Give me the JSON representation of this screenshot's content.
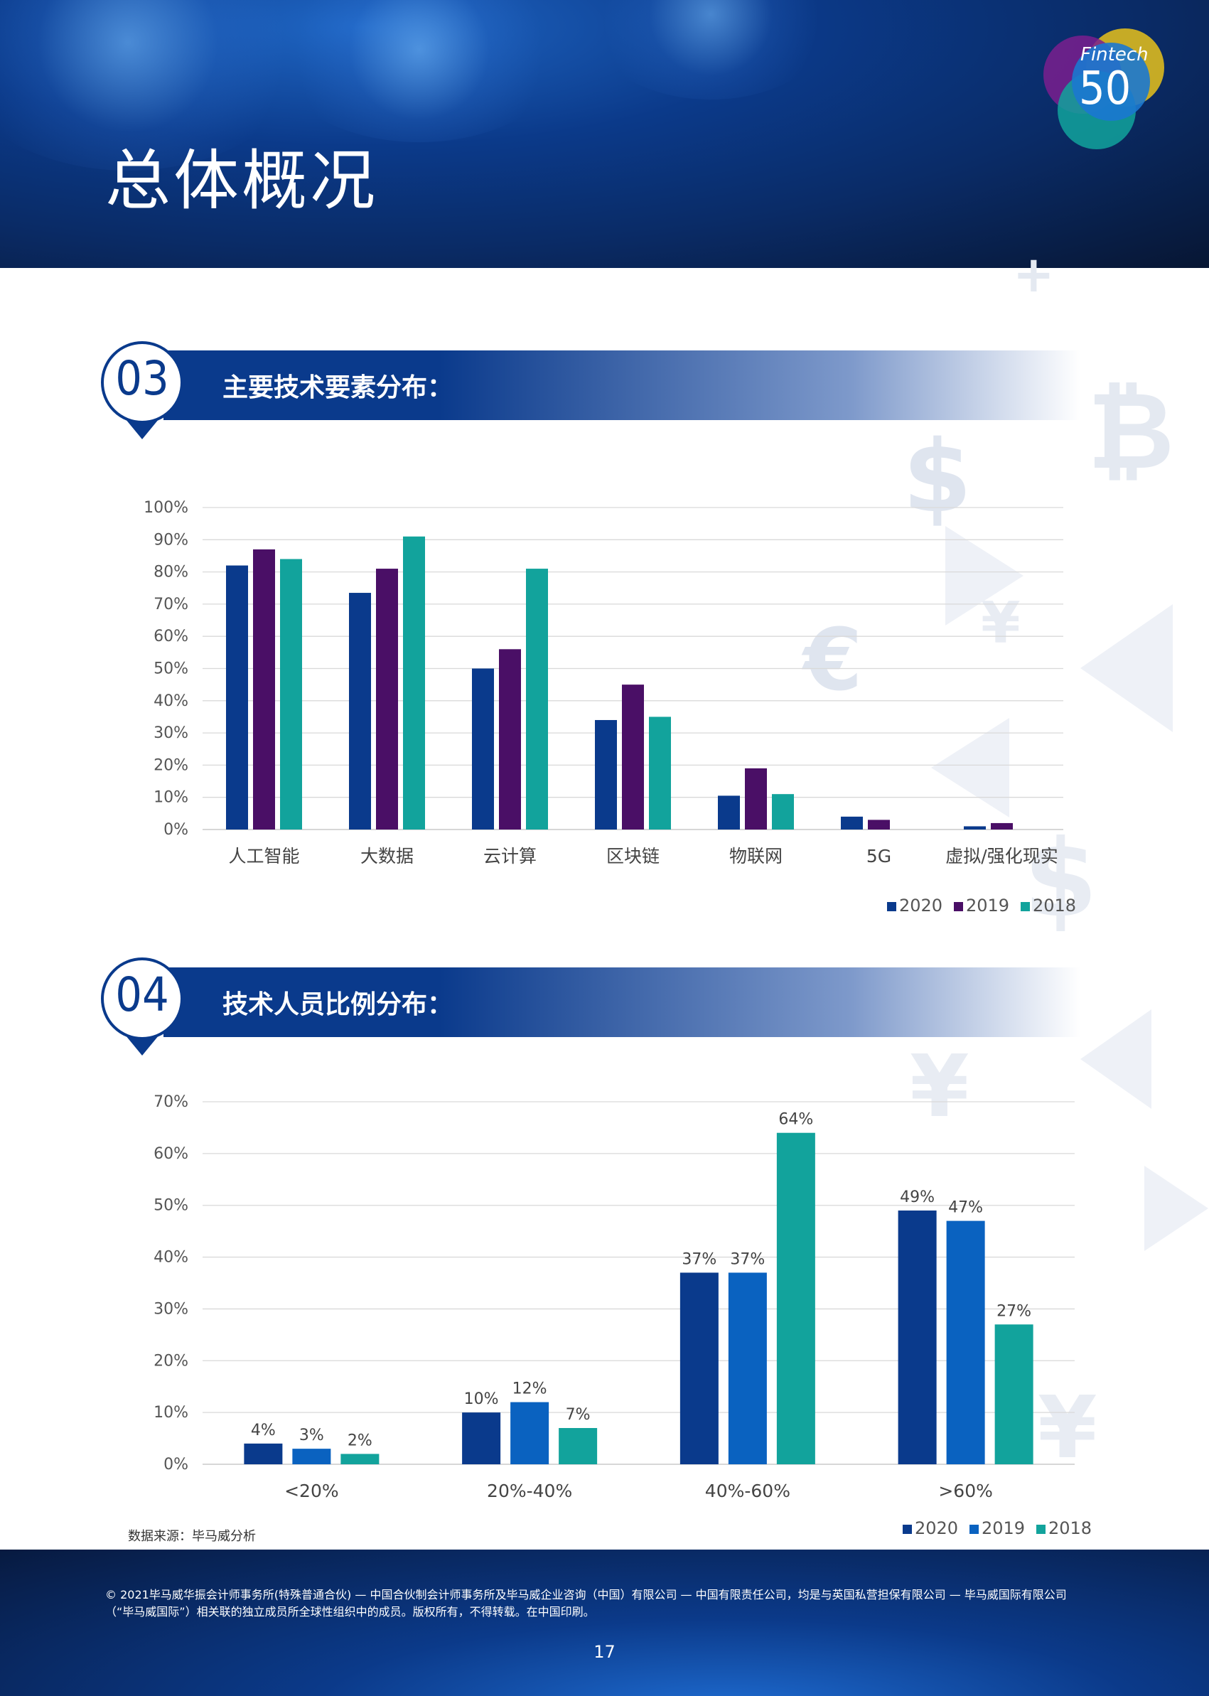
{
  "page": {
    "title": "总体概况",
    "logo": {
      "line1": "Fintech",
      "line2": "50"
    },
    "source": "数据来源：毕马威分析",
    "footer_line1": "© 2021毕马威华振会计师事务所(特殊普通合伙) — 中国合伙制会计师事务所及毕马威企业咨询（中国）有限公司 — 中国有限责任公司，均是与英国私营担保有限公司 — 毕马威国际有限公司",
    "footer_line2": "（“毕马威国际”）相关联的独立成员所全球性组织中的成员。版权所有，不得转载。在中国印刷。",
    "page_number": "17"
  },
  "sections": [
    {
      "number": "03",
      "title": "主要技术要素分布："
    },
    {
      "number": "04",
      "title": "技术人员比例分布："
    }
  ],
  "chart_data": [
    {
      "type": "bar",
      "title": "主要技术要素分布：",
      "categories": [
        "人工智能",
        "大数据",
        "云计算",
        "区块链",
        "物联网",
        "5G",
        "虚拟/强化现实"
      ],
      "series": [
        {
          "name": "2020",
          "color": "#0a3a8c",
          "values": [
            82,
            73.5,
            50,
            34,
            10.5,
            4,
            1
          ]
        },
        {
          "name": "2019",
          "color": "#4a0f66",
          "values": [
            87,
            81,
            56,
            45,
            19,
            3,
            2
          ]
        },
        {
          "name": "2018",
          "color": "#12a39c",
          "values": [
            84,
            91,
            81,
            35,
            11,
            0,
            0
          ]
        }
      ],
      "ylim": [
        0,
        100
      ],
      "yticks": [
        "0%",
        "10%",
        "20%",
        "30%",
        "40%",
        "50%",
        "60%",
        "70%",
        "80%",
        "90%",
        "100%"
      ],
      "grid": true,
      "legend": "bottom-right",
      "data_labels": false
    },
    {
      "type": "bar",
      "title": "技术人员比例分布：",
      "categories": [
        "<20%",
        "20%-40%",
        "40%-60%",
        ">60%"
      ],
      "series": [
        {
          "name": "2020",
          "color": "#0a3a8c",
          "values": [
            4,
            10,
            37,
            49
          ],
          "labels": [
            "4%",
            "10%",
            "37%",
            "49%"
          ]
        },
        {
          "name": "2019",
          "color": "#0a62c0",
          "values": [
            3,
            12,
            37,
            47
          ],
          "labels": [
            "3%",
            "12%",
            "37%",
            "47%"
          ]
        },
        {
          "name": "2018",
          "color": "#12a39c",
          "values": [
            2,
            7,
            64,
            27
          ],
          "labels": [
            "2%",
            "7%",
            "64%",
            "27%"
          ]
        }
      ],
      "ylim": [
        0,
        70
      ],
      "yticks": [
        "0%",
        "10%",
        "20%",
        "30%",
        "40%",
        "50%",
        "60%",
        "70%"
      ],
      "grid": true,
      "legend": "bottom-right",
      "data_labels": true
    }
  ]
}
